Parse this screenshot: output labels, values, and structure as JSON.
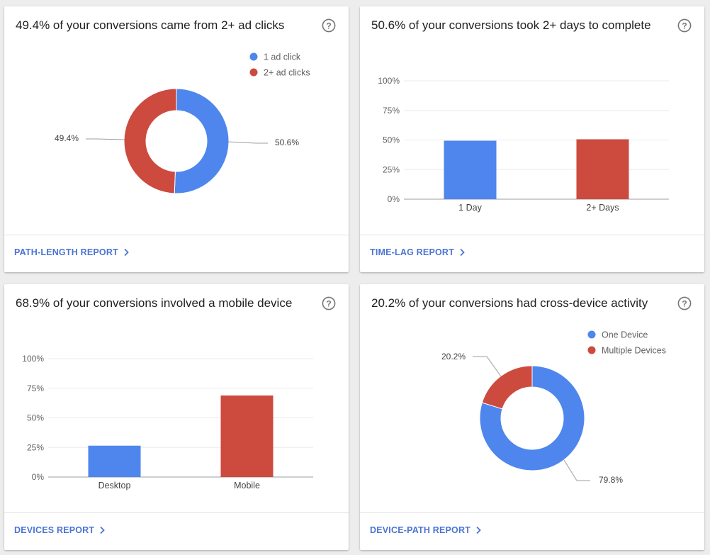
{
  "colors": {
    "blue": "#4e86ee",
    "red": "#cd4a3e",
    "link": "#4a74d4",
    "grid": "#ebebeb",
    "axis": "#9e9e9e"
  },
  "cards": [
    {
      "title": "49.4% of your conversions came from 2+ ad clicks",
      "help_icon": "question-circle-icon",
      "link_label": "PATH-LENGTH REPORT",
      "link_icon": "chevron-right-icon"
    },
    {
      "title": "50.6% of your conversions took 2+ days to complete",
      "help_icon": "question-circle-icon",
      "link_label": "TIME-LAG REPORT",
      "link_icon": "chevron-right-icon"
    },
    {
      "title": "68.9% of your conversions involved a mobile device",
      "help_icon": "question-circle-icon",
      "link_label": "DEVICES REPORT",
      "link_icon": "chevron-right-icon"
    },
    {
      "title": "20.2% of your conversions had cross-device activity",
      "help_icon": "question-circle-icon",
      "link_label": "DEVICE-PATH REPORT",
      "link_icon": "chevron-right-icon"
    }
  ],
  "chart_data": [
    {
      "type": "pie",
      "donut": true,
      "labels": [
        "1 ad click",
        "2+ ad clicks"
      ],
      "values": [
        50.6,
        49.4
      ],
      "value_labels": [
        "50.6%",
        "49.4%"
      ],
      "colors": [
        "#4e86ee",
        "#cd4a3e"
      ],
      "legend": "top-right"
    },
    {
      "type": "bar",
      "categories": [
        "1 Day",
        "2+ Days"
      ],
      "values": [
        49.4,
        50.6
      ],
      "colors": [
        "#4e86ee",
        "#cd4a3e"
      ],
      "ylim": [
        0,
        100
      ],
      "yticks": [
        "0%",
        "25%",
        "50%",
        "75%",
        "100%"
      ],
      "grid": true
    },
    {
      "type": "bar",
      "categories": [
        "Desktop",
        "Mobile"
      ],
      "values": [
        26.5,
        68.9
      ],
      "colors": [
        "#4e86ee",
        "#cd4a3e"
      ],
      "ylim": [
        0,
        100
      ],
      "yticks": [
        "0%",
        "25%",
        "50%",
        "75%",
        "100%"
      ],
      "grid": true
    },
    {
      "type": "pie",
      "donut": true,
      "labels": [
        "One Device",
        "Multiple Devices"
      ],
      "values": [
        79.8,
        20.2
      ],
      "value_labels": [
        "79.8%",
        "20.2%"
      ],
      "colors": [
        "#4e86ee",
        "#cd4a3e"
      ],
      "legend": "top-right"
    }
  ]
}
